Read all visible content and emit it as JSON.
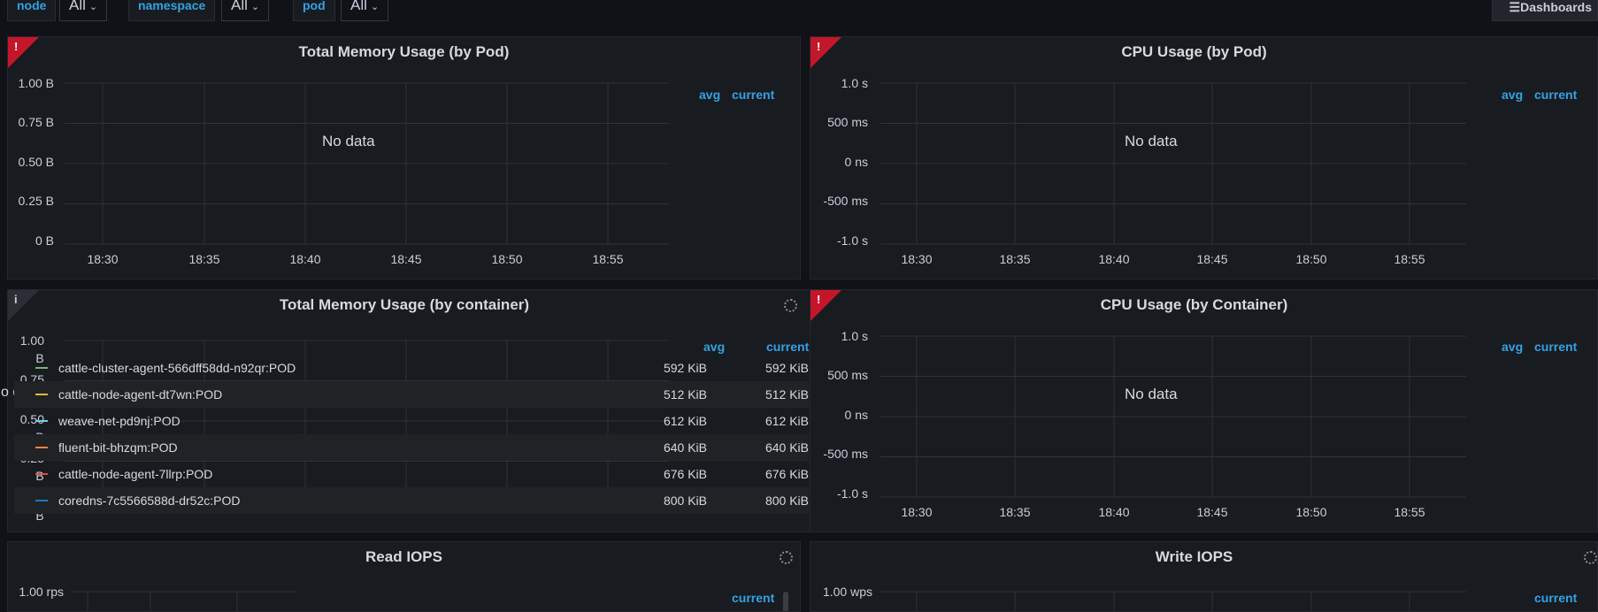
{
  "topbar": {
    "vars": [
      {
        "label": "node",
        "value": "All"
      },
      {
        "label": "namespace",
        "value": "All"
      },
      {
        "label": "pod",
        "value": "All"
      }
    ],
    "dashboards_label": "Dashboards"
  },
  "time_ticks": [
    "18:30",
    "18:35",
    "18:40",
    "18:45",
    "18:50",
    "18:55"
  ],
  "no_data": "No data",
  "panels": {
    "mem_pod": {
      "title": "Total Memory Usage (by Pod)",
      "status": "error",
      "yticks": [
        "1.00 B",
        "0.75 B",
        "0.50 B",
        "0.25 B",
        "0 B"
      ],
      "legend": {
        "avg": "avg",
        "current": "current"
      }
    },
    "cpu_pod": {
      "title": "CPU Usage (by Pod)",
      "status": "error",
      "yticks": [
        "1.0 s",
        "500 ms",
        "0 ns",
        "-500 ms",
        "-1.0 s"
      ],
      "legend": {
        "avg": "avg",
        "current": "current"
      }
    },
    "mem_container": {
      "title": "Total Memory Usage (by container)",
      "status": "info",
      "yticks_line1": [
        "1.00",
        "0.75",
        "0.50",
        "0.25",
        "0"
      ],
      "yticks_line2": [
        "B",
        "B",
        "B",
        "B",
        "B"
      ],
      "nodata_clipped": "o data",
      "legend": {
        "avg": "avg",
        "current": "current"
      },
      "series": [
        {
          "name": "cattle-cluster-agent-566dff58dd-n92qr:POD",
          "avg": "592 KiB",
          "current": "592 KiB",
          "color": "#7eb26d"
        },
        {
          "name": "cattle-node-agent-dt7wn:POD",
          "avg": "512 KiB",
          "current": "512 KiB",
          "color": "#eab839"
        },
        {
          "name": "weave-net-pd9nj:POD",
          "avg": "612 KiB",
          "current": "612 KiB",
          "color": "#6ed0e0"
        },
        {
          "name": "fluent-bit-bhzqm:POD",
          "avg": "640 KiB",
          "current": "640 KiB",
          "color": "#ef843c"
        },
        {
          "name": "cattle-node-agent-7llrp:POD",
          "avg": "676 KiB",
          "current": "676 KiB",
          "color": "#e24d42"
        },
        {
          "name": "coredns-7c5566588d-dr52c:POD",
          "avg": "800 KiB",
          "current": "800 KiB",
          "color": "#1f78c1"
        }
      ]
    },
    "cpu_container": {
      "title": "CPU Usage (by Container)",
      "status": "error",
      "yticks": [
        "1.0 s",
        "500 ms",
        "0 ns",
        "-500 ms",
        "-1.0 s"
      ],
      "legend": {
        "avg": "avg",
        "current": "current"
      }
    },
    "read_iops": {
      "title": "Read IOPS",
      "ytick": "1.00 rps",
      "legend": {
        "current": "current"
      }
    },
    "write_iops": {
      "title": "Write IOPS",
      "ytick": "1.00 wps",
      "legend": {
        "current": "current"
      }
    }
  },
  "colors": {
    "background": "#111217",
    "panel": "#181b1f",
    "accent": "#33a2e5",
    "error": "#c4162a"
  }
}
